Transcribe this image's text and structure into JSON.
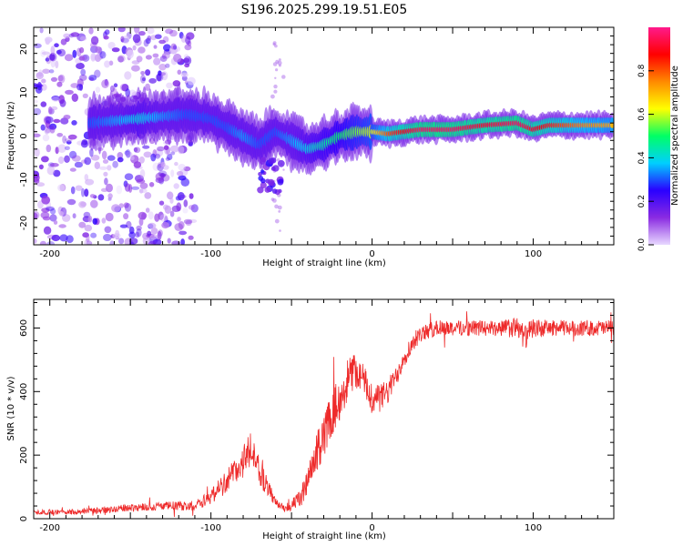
{
  "title": "S196.2025.299.19.51.E05",
  "colors": {
    "snr_line": "#ee2a2a",
    "colorbar_stops": [
      "#e8d8ff",
      "#8a2be2",
      "#2a00ff",
      "#00cfff",
      "#00ff66",
      "#ffff00",
      "#ff8a00",
      "#ff0000",
      "#ff1a8c"
    ]
  },
  "chart_data": [
    {
      "type": "heatmap",
      "title": "S196.2025.299.19.51.E05",
      "xlabel": "Height of straight line (km)",
      "ylabel": "Frequency (Hz)",
      "xlim": [
        -210,
        150
      ],
      "ylim": [
        -25,
        25
      ],
      "xticks": [
        -200,
        -100,
        0,
        100
      ],
      "yticks": [
        -20,
        -10,
        0,
        10,
        20
      ],
      "colorbar": {
        "label": "Normalized spectral amplitude",
        "range": [
          0,
          1
        ],
        "ticks": [
          "0.0",
          "0.2",
          "0.4",
          "0.6",
          "0.8"
        ]
      },
      "ridge": {
        "description": "dominant frequency track vs height",
        "x": [
          -175,
          -160,
          -145,
          -130,
          -115,
          -100,
          -90,
          -80,
          -70,
          -60,
          -50,
          -40,
          -30,
          -20,
          -10,
          0,
          10,
          30,
          50,
          70,
          90,
          100,
          110,
          130,
          150
        ],
        "y": [
          3,
          3.5,
          4,
          4.5,
          5,
          4,
          2,
          0,
          -2,
          1,
          -1,
          -3,
          -2,
          0,
          1,
          1,
          0.5,
          1.5,
          1.5,
          2.5,
          3,
          1.5,
          2.5,
          2.5,
          2.5
        ],
        "amplitude": [
          0.3,
          0.35,
          0.4,
          0.35,
          0.3,
          0.3,
          0.3,
          0.35,
          0.3,
          0.3,
          0.35,
          0.4,
          0.45,
          0.5,
          0.55,
          0.6,
          0.8,
          0.95,
          0.95,
          0.9,
          0.95,
          0.9,
          0.85,
          0.75,
          0.7
        ]
      },
      "noise_band": {
        "x_range": [
          -210,
          -110
        ],
        "amplitude_max": 0.25
      }
    },
    {
      "type": "line",
      "xlabel": "Height of straight line (km)",
      "ylabel": "SNR (10 * v/v)",
      "xlim": [
        -210,
        150
      ],
      "ylim": [
        0,
        690
      ],
      "xticks": [
        -200,
        -100,
        0,
        100
      ],
      "yticks": [
        0,
        200,
        400,
        600
      ],
      "series": [
        {
          "name": "SNR",
          "x": [
            -210,
            -190,
            -170,
            -150,
            -130,
            -110,
            -100,
            -90,
            -80,
            -75,
            -70,
            -65,
            -60,
            -55,
            -50,
            -45,
            -40,
            -35,
            -30,
            -25,
            -20,
            -15,
            -10,
            -5,
            0,
            5,
            10,
            15,
            20,
            25,
            30,
            40,
            50,
            60,
            70,
            80,
            90,
            95,
            100,
            110,
            120,
            130,
            140,
            150
          ],
          "y": [
            20,
            22,
            25,
            35,
            40,
            40,
            70,
            120,
            180,
            220,
            150,
            100,
            50,
            35,
            40,
            60,
            110,
            200,
            260,
            330,
            380,
            440,
            470,
            430,
            380,
            380,
            400,
            450,
            510,
            550,
            580,
            600,
            600,
            600,
            600,
            600,
            600,
            570,
            600,
            600,
            600,
            600,
            600,
            600
          ],
          "noise": [
            8,
            8,
            10,
            12,
            14,
            15,
            25,
            40,
            50,
            55,
            45,
            30,
            15,
            12,
            20,
            30,
            45,
            60,
            70,
            70,
            70,
            65,
            60,
            55,
            50,
            45,
            40,
            35,
            30,
            30,
            25,
            25,
            25,
            25,
            25,
            25,
            35,
            40,
            30,
            25,
            25,
            25,
            25,
            25
          ]
        }
      ]
    }
  ]
}
